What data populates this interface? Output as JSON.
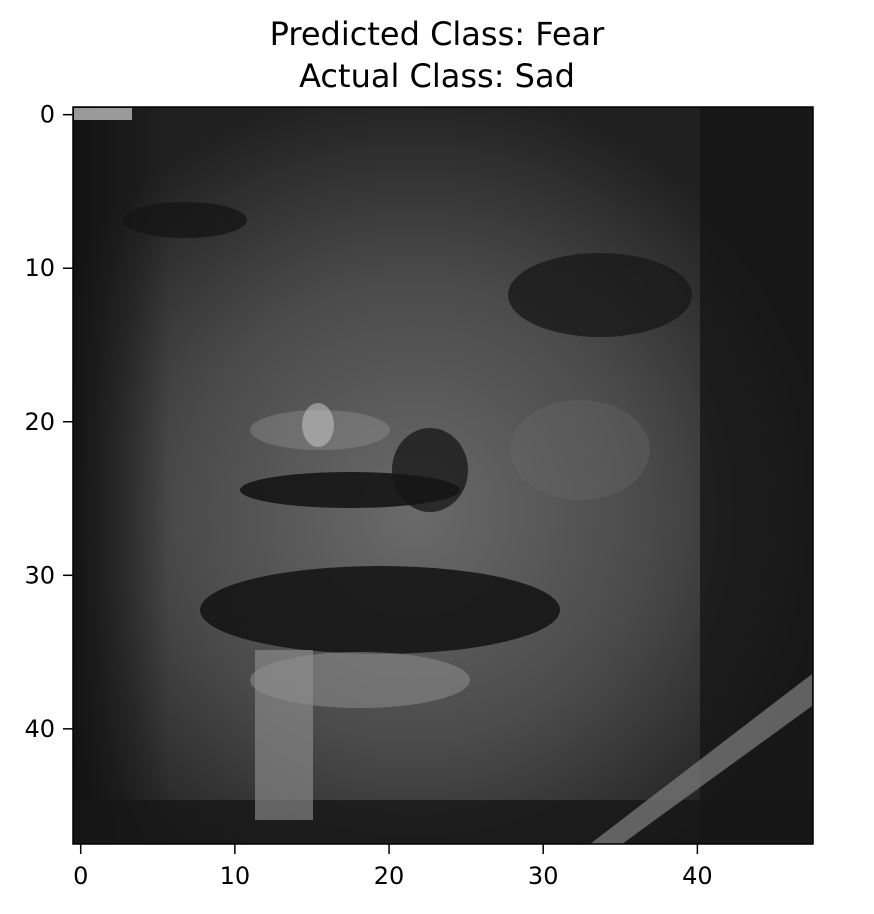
{
  "chart_data": {
    "type": "heatmap",
    "title_lines": [
      "Predicted Class: Fear",
      "Actual Class: Sad"
    ],
    "colormap": "gray",
    "image_size": [
      48,
      48
    ],
    "x_ticks": [
      0,
      10,
      20,
      30,
      40
    ],
    "y_ticks": [
      0,
      10,
      20,
      30,
      40
    ],
    "xlim": [
      -0.5,
      47.5
    ],
    "ylim": [
      47.5,
      -0.5
    ],
    "image_description": "Grayscale 48x48 face image"
  }
}
